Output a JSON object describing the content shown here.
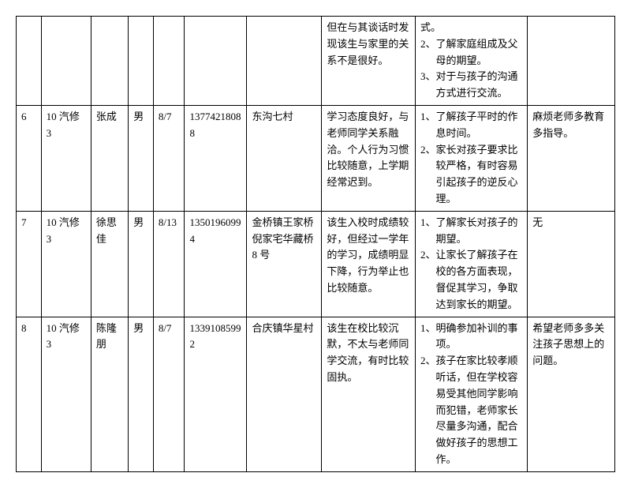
{
  "rows": [
    {
      "num": "",
      "class": "",
      "name": "",
      "gender": "",
      "date": "",
      "phone": "",
      "addr": "",
      "situation": "但在与其谈话时发现该生与家里的关系不是很好。",
      "discussion_pre": "式。",
      "discussion_items": [
        "了解家庭组成及父母的期望。",
        "对于与孩子的沟通方式进行交流。"
      ],
      "discussion_start": 2,
      "feedback": ""
    },
    {
      "num": "6",
      "class": "10 汽修 3",
      "name": "张成",
      "gender": "男",
      "date": "8/7",
      "phone": "13774218088",
      "addr": "东沟七村",
      "situation": "学习态度良好，与老师同学关系融洽。个人行为习惯比较随意，上学期经常迟到。",
      "discussion_items": [
        "了解孩子平时的作息时间。",
        "家长对孩子要求比较严格，有时容易引起孩子的逆反心理。"
      ],
      "discussion_start": 1,
      "feedback": "麻烦老师多教育多指导。"
    },
    {
      "num": "7",
      "class": "10 汽修 3",
      "name": "徐思佳",
      "gender": "男",
      "date": "8/13",
      "phone": "13501960994",
      "addr": "金桥镇王家桥倪家宅华藏桥 8 号",
      "situation": "该生入校时成绩较好，但经过一学年的学习，成绩明显下降，行为举止也比较随意。",
      "discussion_items": [
        "了解家长对孩子的期望。",
        "让家长了解孩子在校的各方面表现，督促其学习，争取达到家长的期望。"
      ],
      "discussion_start": 1,
      "feedback": "无"
    },
    {
      "num": "8",
      "class": "10 汽修 3",
      "name": "陈隆朋",
      "gender": "男",
      "date": "8/7",
      "phone": "13391085992",
      "addr": "合庆镇华星村",
      "situation": "该生在校比较沉默，不太与老师同学交流，有时比较固执。",
      "discussion_items": [
        "明确参加补训的事项。",
        "孩子在家比较孝顺听话，但在学校容易受其他同学影响而犯错，老师家长尽量多沟通，配合做好孩子的思想工作。"
      ],
      "discussion_start": 1,
      "feedback": "希望老师多多关注孩子思想上的问题。"
    }
  ]
}
